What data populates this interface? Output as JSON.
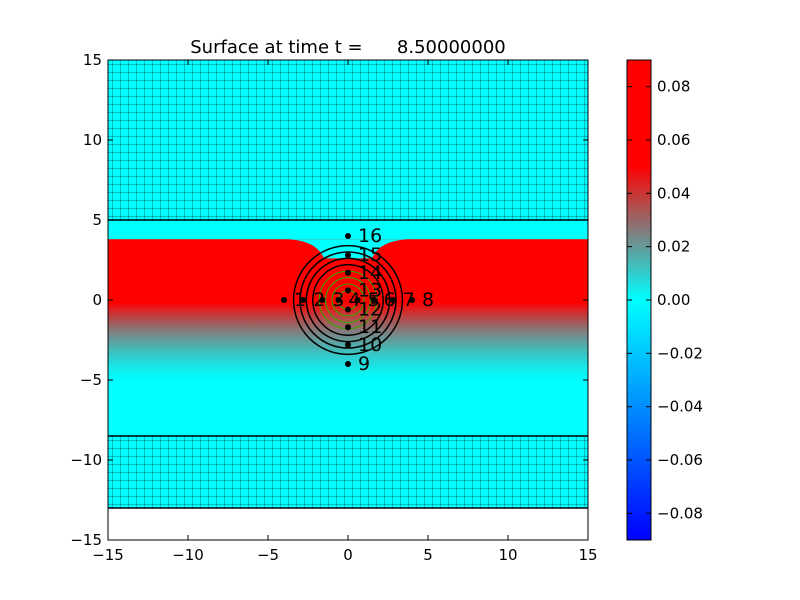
{
  "chart_data": {
    "type": "heatmap",
    "title": "Surface at time t =      8.50000000",
    "xlim": [
      -15,
      15
    ],
    "ylim": [
      -15,
      15
    ],
    "x_ticks": [
      "−15",
      "−10",
      "−5",
      "0",
      "5",
      "10",
      "15"
    ],
    "y_ticks": [
      "15",
      "10",
      "5",
      "0",
      "−5",
      "−10",
      "−15"
    ],
    "colorbar": {
      "range": [
        -0.09,
        0.09
      ],
      "tick_values": [
        0.08,
        0.06,
        0.04,
        0.02,
        0.0,
        -0.02,
        -0.04,
        -0.06,
        -0.08
      ],
      "tick_labels": [
        "0.08",
        "0.06",
        "0.04",
        "0.02",
        "0.00",
        "−0.02",
        "−0.04",
        "−0.06",
        "−0.08"
      ],
      "colors": [
        "#0000ff",
        "#00ffff",
        "#808080",
        "#ff0000"
      ]
    },
    "grid_refinement_boundaries_y": [
      5,
      -8.5,
      -13
    ],
    "gauges": [
      {
        "label": "1",
        "x": -4,
        "y": 0
      },
      {
        "label": "2",
        "x": -2.8,
        "y": 0
      },
      {
        "label": "3",
        "x": -1.6,
        "y": 0
      },
      {
        "label": "4",
        "x": -0.6,
        "y": 0
      },
      {
        "label": "5",
        "x": 0.6,
        "y": 0
      },
      {
        "label": "6",
        "x": 1.6,
        "y": 0
      },
      {
        "label": "7",
        "x": 2.8,
        "y": 0
      },
      {
        "label": "8",
        "x": 4,
        "y": 0
      },
      {
        "label": "9",
        "x": 0,
        "y": -4
      },
      {
        "label": "10",
        "x": 0,
        "y": -2.8
      },
      {
        "label": "11",
        "x": 0,
        "y": -1.7
      },
      {
        "label": "12",
        "x": 0,
        "y": -0.6
      },
      {
        "label": "13",
        "x": 0,
        "y": 0.6
      },
      {
        "label": "14",
        "x": 0,
        "y": 1.7
      },
      {
        "label": "15",
        "x": 0,
        "y": 2.8
      },
      {
        "label": "16",
        "x": 0,
        "y": 4
      }
    ],
    "contour_center": [
      0,
      0
    ],
    "contour_radii": [
      0.6,
      1.0,
      1.4,
      1.8,
      2.2,
      2.6,
      3.0,
      3.4
    ]
  }
}
